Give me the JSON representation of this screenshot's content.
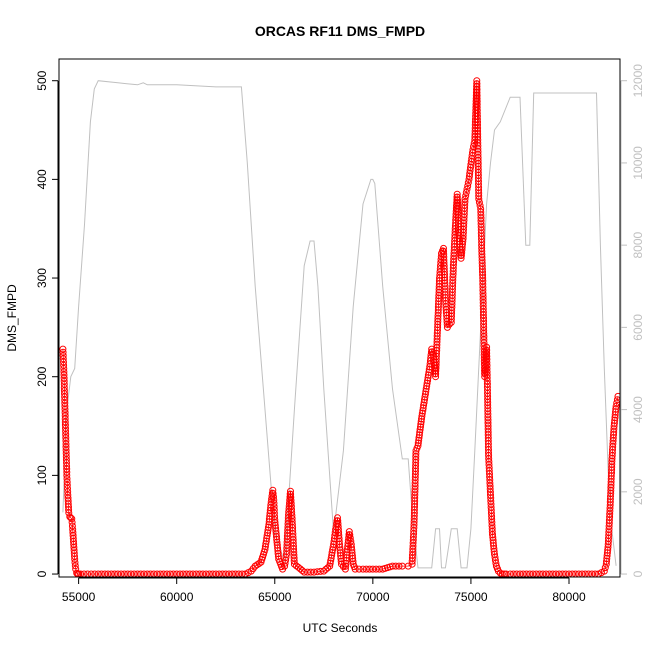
{
  "chart_data": {
    "type": "scatter",
    "title": "ORCAS RF11 DMS_FMPD",
    "xlabel": "UTC Seconds",
    "ylabel": "DMS_FMPD",
    "xlim": [
      54000,
      82600
    ],
    "ylim": [
      -3,
      522
    ],
    "y2lim": [
      -72,
      12528
    ],
    "grid": false,
    "legend": "none",
    "x_ticks": [
      "55000",
      "60000",
      "65000",
      "70000",
      "75000",
      "80000"
    ],
    "y_ticks": [
      "0",
      "100",
      "200",
      "300",
      "400",
      "500"
    ],
    "y2_ticks": [
      "0",
      "2000",
      "4000",
      "6000",
      "8000",
      "10000",
      "12000"
    ],
    "colors": {
      "points": "#ff0000",
      "altitude_line": "#c0c0c0",
      "right_axis": "#c0c0c0"
    },
    "series": [
      {
        "kind": "points",
        "axis": "left",
        "x": [
          54200,
          54250,
          54300,
          54350,
          54400,
          54450,
          54500,
          54550,
          54600,
          54650,
          54700,
          54800,
          54850,
          54900,
          54950,
          55000,
          55100,
          56000,
          57000,
          58000,
          59000,
          60000,
          61000,
          62000,
          63000,
          63500,
          63800,
          64000,
          64300,
          64500,
          64700,
          64800,
          64900,
          64950,
          65000,
          65100,
          65200,
          65400,
          65500,
          65600,
          65700,
          65800,
          65900,
          66000,
          66500,
          67000,
          67500,
          67800,
          68000,
          68100,
          68200,
          68300,
          68400,
          68600,
          68700,
          68800,
          68900,
          69000,
          69100,
          69500,
          70000,
          70500,
          71000,
          71500,
          71800,
          72000,
          72100,
          72200,
          72300,
          72500,
          72700,
          72900,
          73000,
          73100,
          73200,
          73300,
          73400,
          73500,
          73600,
          73700,
          73800,
          73900,
          74000,
          74100,
          74200,
          74300,
          74400,
          74500,
          74600,
          74700,
          74800,
          74900,
          75000,
          75100,
          75200,
          75300,
          75400,
          75500,
          75550,
          75600,
          75650,
          75700,
          75750,
          75800,
          75850,
          75900,
          76000,
          76100,
          76200,
          76300,
          76400,
          76500,
          76600,
          76700,
          76800,
          77000,
          77500,
          78000,
          79000,
          80000,
          81000,
          81500,
          81800,
          81900,
          82000,
          82100,
          82200,
          82300,
          82400,
          82500
        ],
        "y": [
          228,
          205,
          170,
          135,
          100,
          80,
          62,
          58,
          57,
          56,
          45,
          15,
          5,
          1,
          0,
          0,
          0,
          0,
          0,
          0,
          0,
          0,
          0,
          0,
          0,
          0,
          3,
          8,
          12,
          25,
          50,
          70,
          85,
          75,
          55,
          35,
          15,
          5,
          8,
          20,
          60,
          84,
          50,
          10,
          2,
          2,
          3,
          8,
          30,
          45,
          57,
          30,
          10,
          5,
          25,
          43,
          30,
          10,
          5,
          5,
          5,
          5,
          8,
          8,
          8,
          10,
          50,
          125,
          130,
          160,
          185,
          210,
          228,
          220,
          200,
          250,
          300,
          325,
          330,
          280,
          250,
          253,
          255,
          310,
          350,
          385,
          340,
          320,
          340,
          380,
          390,
          400,
          415,
          430,
          440,
          500,
          380,
          370,
          330,
          300,
          250,
          200,
          210,
          230,
          180,
          120,
          80,
          40,
          20,
          8,
          3,
          1,
          0,
          0,
          0,
          0,
          0,
          0,
          0,
          0,
          0,
          0,
          3,
          10,
          30,
          70,
          120,
          150,
          170,
          180
        ]
      },
      {
        "kind": "line",
        "axis": "right",
        "x": [
          54200,
          54400,
          54600,
          54800,
          55000,
          55300,
          55600,
          55800,
          56000,
          57000,
          58000,
          58300,
          58500,
          60000,
          62000,
          63000,
          63300,
          63600,
          64000,
          64500,
          65000,
          65500,
          66000,
          66500,
          66800,
          67000,
          67200,
          67500,
          68000,
          68500,
          69000,
          69500,
          69900,
          70000,
          70100,
          70500,
          71000,
          71500,
          71800,
          72000,
          72300,
          72500,
          72800,
          73000,
          73200,
          73400,
          73500,
          73700,
          74000,
          74300,
          74500,
          74600,
          74800,
          75000,
          75200,
          75500,
          75800,
          76000,
          76200,
          76500,
          77000,
          77200,
          77500,
          77800,
          78000,
          78200,
          78400,
          78600,
          78800,
          79000,
          80000,
          81000,
          81400,
          81600,
          81800,
          82000,
          82200,
          82400
        ],
        "y": [
          1500,
          4000,
          4800,
          5000,
          6500,
          8500,
          11000,
          11800,
          12000,
          11950,
          11900,
          11950,
          11900,
          11900,
          11850,
          11850,
          11850,
          10000,
          7000,
          4000,
          1000,
          300,
          4000,
          7500,
          8100,
          8100,
          7000,
          4500,
          1000,
          3000,
          6500,
          9000,
          9600,
          9600,
          9500,
          7000,
          4500,
          2800,
          2800,
          1500,
          150,
          150,
          150,
          150,
          1100,
          1100,
          150,
          150,
          1100,
          1100,
          150,
          150,
          150,
          1100,
          3000,
          6000,
          9000,
          10000,
          10800,
          11000,
          11600,
          11600,
          11600,
          8000,
          8000,
          11700,
          11700,
          11700,
          11700,
          11700,
          11700,
          11700,
          11700,
          8000,
          5000,
          2500,
          1000,
          200
        ]
      }
    ]
  }
}
